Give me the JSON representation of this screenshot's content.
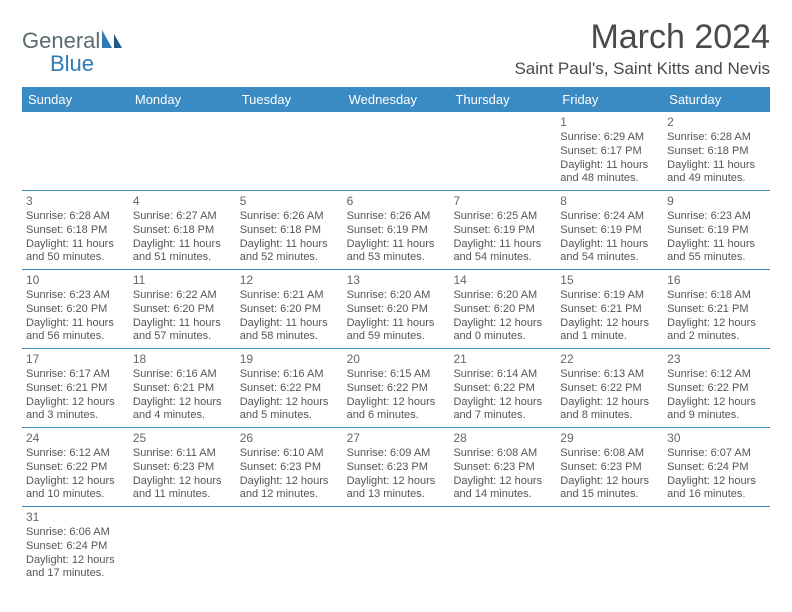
{
  "brand": {
    "general": "General",
    "blue": "Blue"
  },
  "header": {
    "title": "March 2024",
    "location": "Saint Paul's, Saint Kitts and Nevis"
  },
  "colors": {
    "header_bar": "#3a8ac4",
    "header_text": "#ffffff",
    "rule": "#3a8ac4",
    "body_text": "#555555",
    "title_text": "#4a4a4a",
    "logo_gray": "#5a6a72",
    "logo_blue": "#2d7bb8",
    "background": "#ffffff"
  },
  "daysOfWeek": [
    "Sunday",
    "Monday",
    "Tuesday",
    "Wednesday",
    "Thursday",
    "Friday",
    "Saturday"
  ],
  "weeks": [
    [
      null,
      null,
      null,
      null,
      null,
      {
        "n": "1",
        "sr": "Sunrise: 6:29 AM",
        "ss": "Sunset: 6:17 PM",
        "d1": "Daylight: 11 hours",
        "d2": "and 48 minutes."
      },
      {
        "n": "2",
        "sr": "Sunrise: 6:28 AM",
        "ss": "Sunset: 6:18 PM",
        "d1": "Daylight: 11 hours",
        "d2": "and 49 minutes."
      }
    ],
    [
      {
        "n": "3",
        "sr": "Sunrise: 6:28 AM",
        "ss": "Sunset: 6:18 PM",
        "d1": "Daylight: 11 hours",
        "d2": "and 50 minutes."
      },
      {
        "n": "4",
        "sr": "Sunrise: 6:27 AM",
        "ss": "Sunset: 6:18 PM",
        "d1": "Daylight: 11 hours",
        "d2": "and 51 minutes."
      },
      {
        "n": "5",
        "sr": "Sunrise: 6:26 AM",
        "ss": "Sunset: 6:18 PM",
        "d1": "Daylight: 11 hours",
        "d2": "and 52 minutes."
      },
      {
        "n": "6",
        "sr": "Sunrise: 6:26 AM",
        "ss": "Sunset: 6:19 PM",
        "d1": "Daylight: 11 hours",
        "d2": "and 53 minutes."
      },
      {
        "n": "7",
        "sr": "Sunrise: 6:25 AM",
        "ss": "Sunset: 6:19 PM",
        "d1": "Daylight: 11 hours",
        "d2": "and 54 minutes."
      },
      {
        "n": "8",
        "sr": "Sunrise: 6:24 AM",
        "ss": "Sunset: 6:19 PM",
        "d1": "Daylight: 11 hours",
        "d2": "and 54 minutes."
      },
      {
        "n": "9",
        "sr": "Sunrise: 6:23 AM",
        "ss": "Sunset: 6:19 PM",
        "d1": "Daylight: 11 hours",
        "d2": "and 55 minutes."
      }
    ],
    [
      {
        "n": "10",
        "sr": "Sunrise: 6:23 AM",
        "ss": "Sunset: 6:20 PM",
        "d1": "Daylight: 11 hours",
        "d2": "and 56 minutes."
      },
      {
        "n": "11",
        "sr": "Sunrise: 6:22 AM",
        "ss": "Sunset: 6:20 PM",
        "d1": "Daylight: 11 hours",
        "d2": "and 57 minutes."
      },
      {
        "n": "12",
        "sr": "Sunrise: 6:21 AM",
        "ss": "Sunset: 6:20 PM",
        "d1": "Daylight: 11 hours",
        "d2": "and 58 minutes."
      },
      {
        "n": "13",
        "sr": "Sunrise: 6:20 AM",
        "ss": "Sunset: 6:20 PM",
        "d1": "Daylight: 11 hours",
        "d2": "and 59 minutes."
      },
      {
        "n": "14",
        "sr": "Sunrise: 6:20 AM",
        "ss": "Sunset: 6:20 PM",
        "d1": "Daylight: 12 hours",
        "d2": "and 0 minutes."
      },
      {
        "n": "15",
        "sr": "Sunrise: 6:19 AM",
        "ss": "Sunset: 6:21 PM",
        "d1": "Daylight: 12 hours",
        "d2": "and 1 minute."
      },
      {
        "n": "16",
        "sr": "Sunrise: 6:18 AM",
        "ss": "Sunset: 6:21 PM",
        "d1": "Daylight: 12 hours",
        "d2": "and 2 minutes."
      }
    ],
    [
      {
        "n": "17",
        "sr": "Sunrise: 6:17 AM",
        "ss": "Sunset: 6:21 PM",
        "d1": "Daylight: 12 hours",
        "d2": "and 3 minutes."
      },
      {
        "n": "18",
        "sr": "Sunrise: 6:16 AM",
        "ss": "Sunset: 6:21 PM",
        "d1": "Daylight: 12 hours",
        "d2": "and 4 minutes."
      },
      {
        "n": "19",
        "sr": "Sunrise: 6:16 AM",
        "ss": "Sunset: 6:22 PM",
        "d1": "Daylight: 12 hours",
        "d2": "and 5 minutes."
      },
      {
        "n": "20",
        "sr": "Sunrise: 6:15 AM",
        "ss": "Sunset: 6:22 PM",
        "d1": "Daylight: 12 hours",
        "d2": "and 6 minutes."
      },
      {
        "n": "21",
        "sr": "Sunrise: 6:14 AM",
        "ss": "Sunset: 6:22 PM",
        "d1": "Daylight: 12 hours",
        "d2": "and 7 minutes."
      },
      {
        "n": "22",
        "sr": "Sunrise: 6:13 AM",
        "ss": "Sunset: 6:22 PM",
        "d1": "Daylight: 12 hours",
        "d2": "and 8 minutes."
      },
      {
        "n": "23",
        "sr": "Sunrise: 6:12 AM",
        "ss": "Sunset: 6:22 PM",
        "d1": "Daylight: 12 hours",
        "d2": "and 9 minutes."
      }
    ],
    [
      {
        "n": "24",
        "sr": "Sunrise: 6:12 AM",
        "ss": "Sunset: 6:22 PM",
        "d1": "Daylight: 12 hours",
        "d2": "and 10 minutes."
      },
      {
        "n": "25",
        "sr": "Sunrise: 6:11 AM",
        "ss": "Sunset: 6:23 PM",
        "d1": "Daylight: 12 hours",
        "d2": "and 11 minutes."
      },
      {
        "n": "26",
        "sr": "Sunrise: 6:10 AM",
        "ss": "Sunset: 6:23 PM",
        "d1": "Daylight: 12 hours",
        "d2": "and 12 minutes."
      },
      {
        "n": "27",
        "sr": "Sunrise: 6:09 AM",
        "ss": "Sunset: 6:23 PM",
        "d1": "Daylight: 12 hours",
        "d2": "and 13 minutes."
      },
      {
        "n": "28",
        "sr": "Sunrise: 6:08 AM",
        "ss": "Sunset: 6:23 PM",
        "d1": "Daylight: 12 hours",
        "d2": "and 14 minutes."
      },
      {
        "n": "29",
        "sr": "Sunrise: 6:08 AM",
        "ss": "Sunset: 6:23 PM",
        "d1": "Daylight: 12 hours",
        "d2": "and 15 minutes."
      },
      {
        "n": "30",
        "sr": "Sunrise: 6:07 AM",
        "ss": "Sunset: 6:24 PM",
        "d1": "Daylight: 12 hours",
        "d2": "and 16 minutes."
      }
    ],
    [
      {
        "n": "31",
        "sr": "Sunrise: 6:06 AM",
        "ss": "Sunset: 6:24 PM",
        "d1": "Daylight: 12 hours",
        "d2": "and 17 minutes."
      },
      null,
      null,
      null,
      null,
      null,
      null
    ]
  ]
}
